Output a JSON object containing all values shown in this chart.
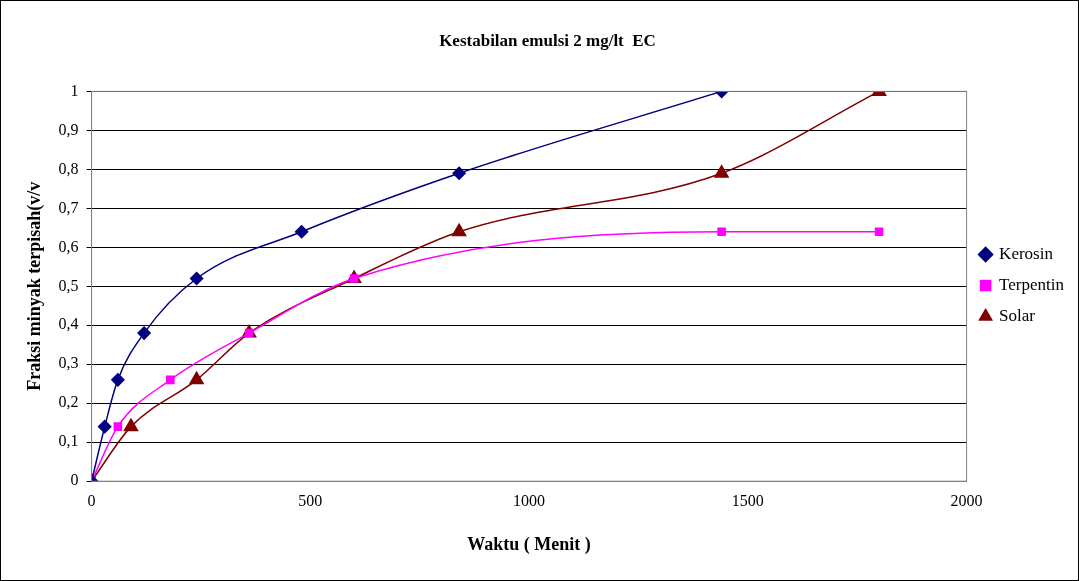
{
  "chart_data": {
    "type": "line",
    "title": "Kestabilan emulsi 2 mg/lt  EC",
    "xlabel": "Waktu ( Menit )",
    "ylabel": "Fraksi minyak terpisah(v/v",
    "xlim": [
      0,
      2000
    ],
    "xticks": [
      0,
      500,
      1000,
      1500,
      2000
    ],
    "ylim": [
      0,
      1
    ],
    "yticks": [
      0,
      {
        "value": 0.1,
        "label": "0,1"
      },
      {
        "value": 0.2,
        "label": "0,2"
      },
      {
        "value": 0.3,
        "label": "0,3"
      },
      {
        "value": 0.4,
        "label": "0,4"
      },
      {
        "value": 0.5,
        "label": "0,5"
      },
      {
        "value": 0.6,
        "label": "0,6"
      },
      {
        "value": 0.7,
        "label": "0,7"
      },
      {
        "value": 0.8,
        "label": "0,8"
      },
      {
        "value": 0.9,
        "label": "0,9"
      },
      1
    ],
    "grid": "y",
    "legend": "right",
    "series": [
      {
        "name": "Kerosin",
        "color": "#000080",
        "marker": "diamond",
        "x": [
          0,
          30,
          60,
          120,
          240,
          480,
          840,
          1440
        ],
        "values": [
          0,
          0.14,
          0.26,
          0.38,
          0.52,
          0.64,
          0.79,
          1
        ]
      },
      {
        "name": "Terpentin",
        "color": "#ff00ff",
        "marker": "square",
        "x": [
          0,
          60,
          180,
          360,
          600,
          1440,
          1800
        ],
        "values": [
          0,
          0.14,
          0.26,
          0.38,
          0.52,
          0.64,
          0.64
        ]
      },
      {
        "name": "Solar",
        "color": "#800000",
        "marker": "triangle",
        "x": [
          0,
          90,
          240,
          360,
          600,
          840,
          1440,
          1800
        ],
        "values": [
          0,
          0.14,
          0.26,
          0.38,
          0.52,
          0.64,
          0.79,
          1
        ]
      }
    ]
  }
}
